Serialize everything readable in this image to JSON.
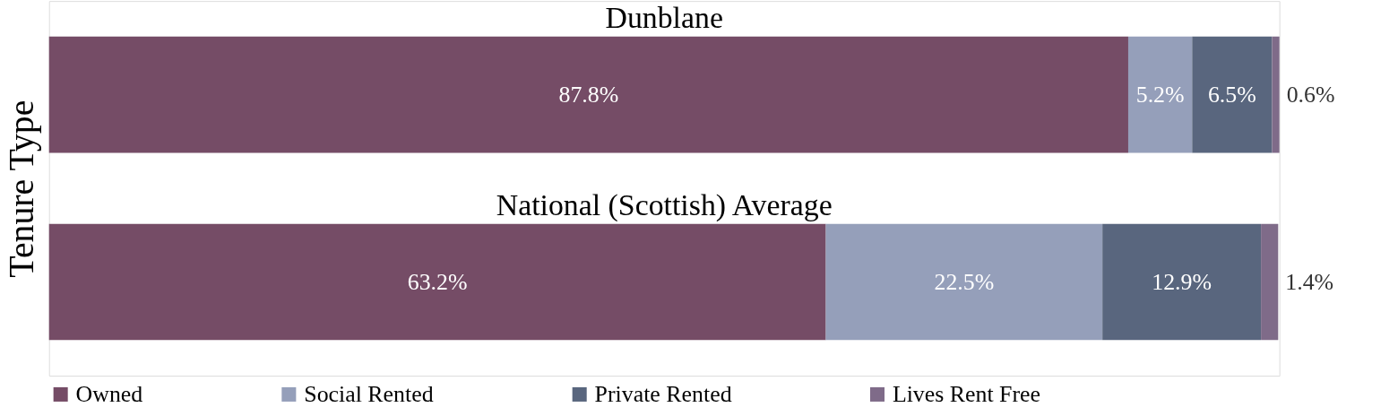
{
  "chart_data": {
    "type": "bar",
    "orientation": "horizontal",
    "stacked": true,
    "ylabel": "Tenure Type",
    "categories": [
      "Dunblane",
      "National (Scottish) Average"
    ],
    "series": [
      {
        "name": "Owned",
        "color": "#754c66",
        "values": [
          87.8,
          63.2
        ],
        "value_labels": [
          "87.8%",
          "63.2%"
        ]
      },
      {
        "name": "Social Rented",
        "color": "#959fba",
        "values": [
          5.2,
          22.5
        ],
        "value_labels": [
          "5.2%",
          "22.5%"
        ]
      },
      {
        "name": "Private Rented",
        "color": "#59667e",
        "values": [
          6.5,
          12.9
        ],
        "value_labels": [
          "6.5%",
          "12.9%"
        ]
      },
      {
        "name": "Lives Rent Free",
        "color": "#7f6b89",
        "values": [
          0.6,
          1.4
        ],
        "value_labels": [
          "0.6%",
          "1.4%"
        ]
      }
    ],
    "legend": "bottom",
    "grid": false
  }
}
